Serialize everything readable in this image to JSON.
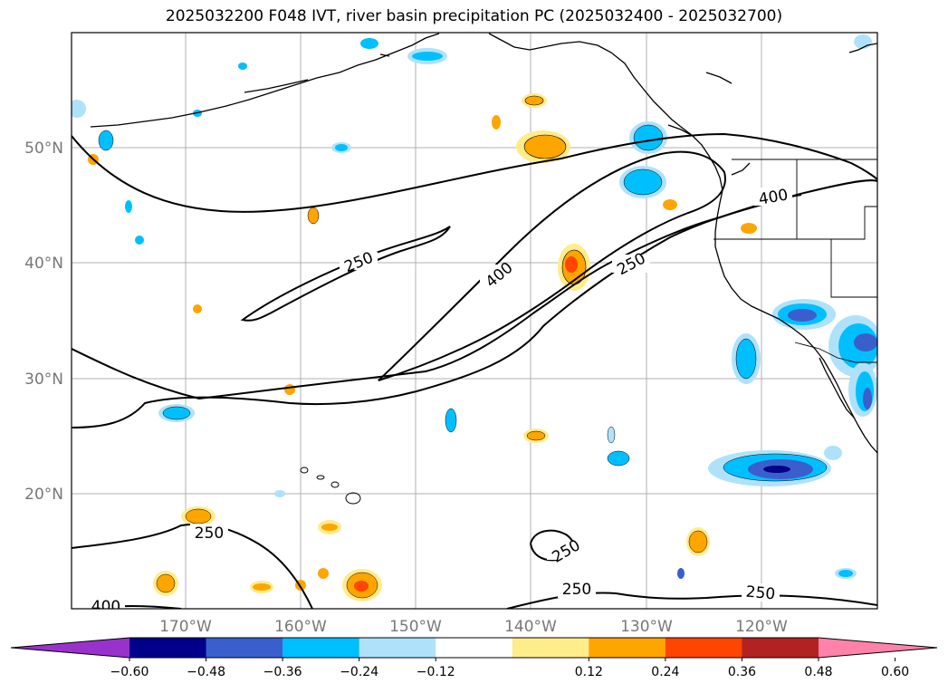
{
  "title": "2025032200 F048 IVT, river basin precipitation PC (2025032400 - 2025032700)",
  "lat_labels": [
    "50°N",
    "40°N",
    "30°N",
    "20°N"
  ],
  "lon_labels": [
    "170°W",
    "160°W",
    "150°W",
    "140°W",
    "130°W",
    "120°W"
  ],
  "contour_levels": [
    "250",
    "400"
  ],
  "colorbar": {
    "ticks": [
      "−0.60",
      "−0.48",
      "−0.36",
      "−0.24",
      "−0.12",
      "0.12",
      "0.24",
      "0.36",
      "0.48",
      "0.60"
    ],
    "colors": [
      "#9932cc",
      "#00008b",
      "#3a5fcd",
      "#00bfff",
      "#afe2fa",
      "#ffffff",
      "#ffec8b",
      "#ffa500",
      "#ff4500",
      "#b22222",
      "#ff82ab"
    ]
  }
}
